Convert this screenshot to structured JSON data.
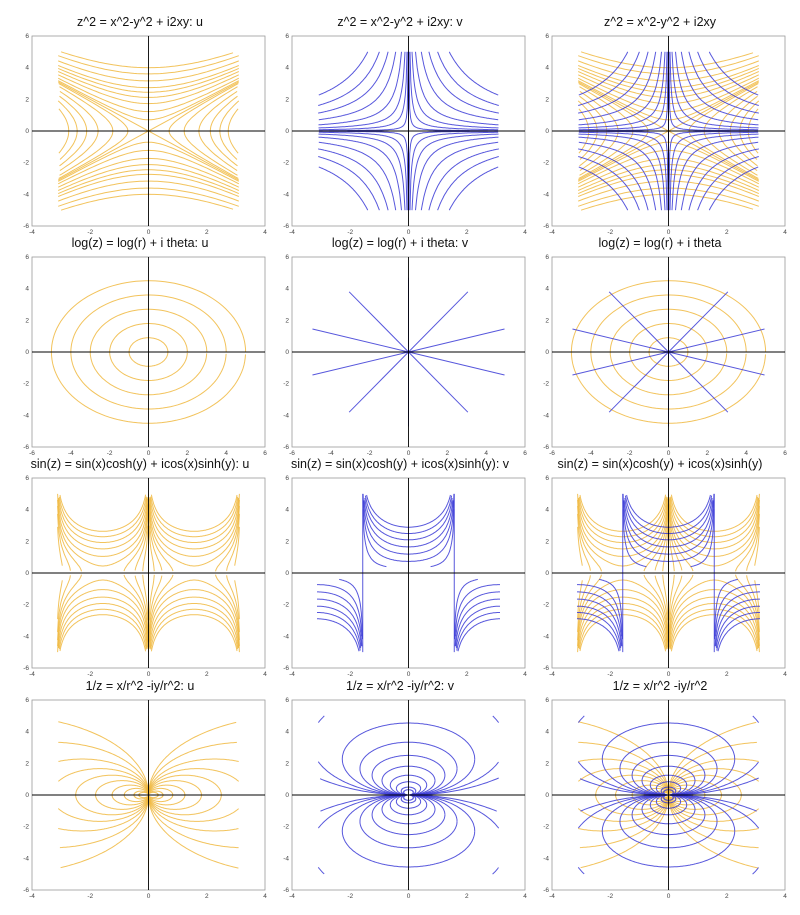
{
  "colors": {
    "u": "#f0b840",
    "v": "#3a3ad6",
    "axis": "#000000",
    "frame": "#9a9a9a"
  },
  "chart_data": [
    {
      "id": "sq-u",
      "type": "line",
      "title": "z^2 = x^2-y^2 + i2xy: u",
      "family": "sq",
      "parts": [
        "u"
      ],
      "xlim": [
        -4,
        4
      ],
      "ylim": [
        -6,
        6
      ],
      "xticks": [
        "-4",
        "-2",
        "0",
        "2",
        "4"
      ],
      "yticks": [
        "-6",
        "-4",
        "-2",
        "0",
        "2",
        "4",
        "6"
      ]
    },
    {
      "id": "sq-v",
      "type": "line",
      "title": "z^2 = x^2-y^2 + i2xy: v",
      "family": "sq",
      "parts": [
        "v"
      ],
      "xlim": [
        -4,
        4
      ],
      "ylim": [
        -6,
        6
      ],
      "xticks": [
        "-4",
        "-2",
        "0",
        "2",
        "4"
      ],
      "yticks": [
        "-6",
        "-4",
        "-2",
        "0",
        "2",
        "4",
        "6"
      ]
    },
    {
      "id": "sq-uv",
      "type": "line",
      "title": "z^2 = x^2-y^2 + i2xy",
      "family": "sq",
      "parts": [
        "u",
        "v"
      ],
      "xlim": [
        -4,
        4
      ],
      "ylim": [
        -6,
        6
      ],
      "xticks": [
        "-4",
        "-2",
        "0",
        "2",
        "4"
      ],
      "yticks": [
        "-6",
        "-4",
        "-2",
        "0",
        "2",
        "4",
        "6"
      ]
    },
    {
      "id": "log-u",
      "type": "line",
      "title": "log(z) = log(r) + i theta: u",
      "family": "log",
      "parts": [
        "u"
      ],
      "xlim": [
        -6,
        6
      ],
      "ylim": [
        -6,
        6
      ],
      "xticks": [
        "-6",
        "-4",
        "-2",
        "0",
        "2",
        "4",
        "6"
      ],
      "yticks": [
        "-6",
        "-4",
        "-2",
        "0",
        "2",
        "4",
        "6"
      ]
    },
    {
      "id": "log-v",
      "type": "line",
      "title": "log(z) = log(r) + i theta: v",
      "family": "log",
      "parts": [
        "v"
      ],
      "xlim": [
        -6,
        6
      ],
      "ylim": [
        -6,
        6
      ],
      "xticks": [
        "-6",
        "-4",
        "-2",
        "0",
        "2",
        "4",
        "6"
      ],
      "yticks": [
        "-6",
        "-4",
        "-2",
        "0",
        "2",
        "4",
        "6"
      ]
    },
    {
      "id": "log-uv",
      "type": "line",
      "title": "log(z) = log(r) + i theta",
      "family": "log",
      "parts": [
        "u",
        "v"
      ],
      "xlim": [
        -6,
        6
      ],
      "ylim": [
        -6,
        6
      ],
      "xticks": [
        "-6",
        "-4",
        "-2",
        "0",
        "2",
        "4",
        "6"
      ],
      "yticks": [
        "-6",
        "-4",
        "-2",
        "0",
        "2",
        "4",
        "6"
      ]
    },
    {
      "id": "sin-u",
      "type": "line",
      "title": "sin(z) = sin(x)cosh(y) + icos(x)sinh(y): u",
      "family": "sin",
      "parts": [
        "u"
      ],
      "xlim": [
        -4,
        4
      ],
      "ylim": [
        -6,
        6
      ],
      "xticks": [
        "-4",
        "-2",
        "0",
        "2",
        "4"
      ],
      "yticks": [
        "-6",
        "-4",
        "-2",
        "0",
        "2",
        "4",
        "6"
      ]
    },
    {
      "id": "sin-v",
      "type": "line",
      "title": "sin(z) = sin(x)cosh(y) + icos(x)sinh(y): v",
      "family": "sin",
      "parts": [
        "v"
      ],
      "xlim": [
        -4,
        4
      ],
      "ylim": [
        -6,
        6
      ],
      "xticks": [
        "-4",
        "-2",
        "0",
        "2",
        "4"
      ],
      "yticks": [
        "-6",
        "-4",
        "-2",
        "0",
        "2",
        "4",
        "6"
      ]
    },
    {
      "id": "sin-uv",
      "type": "line",
      "title": "sin(z) = sin(x)cosh(y) + icos(x)sinh(y)",
      "family": "sin",
      "parts": [
        "u",
        "v"
      ],
      "xlim": [
        -4,
        4
      ],
      "ylim": [
        -6,
        6
      ],
      "xticks": [
        "-4",
        "-2",
        "0",
        "2",
        "4"
      ],
      "yticks": [
        "-6",
        "-4",
        "-2",
        "0",
        "2",
        "4",
        "6"
      ]
    },
    {
      "id": "inv-u",
      "type": "line",
      "title": "1/z = x/r^2 -iy/r^2: u",
      "family": "inv",
      "parts": [
        "u"
      ],
      "xlim": [
        -4,
        4
      ],
      "ylim": [
        -6,
        6
      ],
      "xticks": [
        "-4",
        "-2",
        "0",
        "2",
        "4"
      ],
      "yticks": [
        "-6",
        "-4",
        "-2",
        "0",
        "2",
        "4",
        "6"
      ]
    },
    {
      "id": "inv-v",
      "type": "line",
      "title": "1/z = x/r^2 -iy/r^2: v",
      "family": "inv",
      "parts": [
        "v"
      ],
      "xlim": [
        -4,
        4
      ],
      "ylim": [
        -6,
        6
      ],
      "xticks": [
        "-4",
        "-2",
        "0",
        "2",
        "4"
      ],
      "yticks": [
        "-6",
        "-4",
        "-2",
        "0",
        "2",
        "4",
        "6"
      ]
    },
    {
      "id": "inv-uv",
      "type": "line",
      "title": "1/z = x/r^2 -iy/r^2",
      "family": "inv",
      "parts": [
        "u",
        "v"
      ],
      "xlim": [
        -4,
        4
      ],
      "ylim": [
        -6,
        6
      ],
      "xticks": [
        "-4",
        "-2",
        "0",
        "2",
        "4"
      ],
      "yticks": [
        "-6",
        "-4",
        "-2",
        "0",
        "2",
        "4",
        "6"
      ]
    }
  ]
}
